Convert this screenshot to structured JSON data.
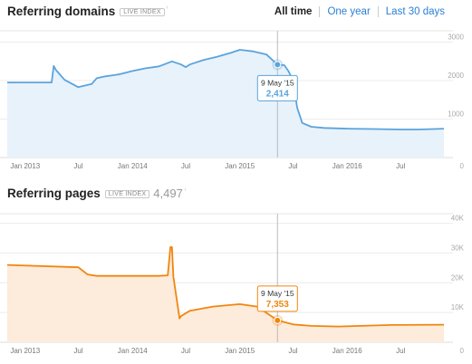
{
  "header": {
    "ranges": [
      {
        "label": "All time",
        "active": true
      },
      {
        "label": "One year",
        "active": false
      },
      {
        "label": "Last 30 days",
        "active": false
      }
    ]
  },
  "chart_data": [
    {
      "type": "area",
      "title": "Referring domains",
      "badge": "LIVE INDEX",
      "total": "",
      "info_icon": "info-icon",
      "color": "#5ba3dc",
      "fill": "#e8f2fb",
      "xlim": [
        "2012-11-01",
        "2016-11-25"
      ],
      "ylim": [
        0,
        3200
      ],
      "yticks": [
        1000,
        2000,
        3000
      ],
      "ytick_labels": [
        "1000",
        "2000",
        "3000"
      ],
      "xticks": [
        "2013-01-01",
        "2013-07-01",
        "2014-01-01",
        "2014-07-01",
        "2015-01-01",
        "2015-07-01",
        "2016-01-01",
        "2016-07-01"
      ],
      "xtick_labels": [
        "Jan 2013",
        "Jul",
        "Jan 2014",
        "Jul",
        "Jan 2015",
        "Jul",
        "Jan 2016",
        "Jul"
      ],
      "grid": true,
      "x": [
        "2012-11-01",
        "2013-04-01",
        "2013-04-08",
        "2013-04-15",
        "2013-05-15",
        "2013-06-30",
        "2013-08-15",
        "2013-09-01",
        "2013-10-01",
        "2013-11-15",
        "2014-01-01",
        "2014-02-15",
        "2014-04-01",
        "2014-05-15",
        "2014-06-15",
        "2014-07-01",
        "2014-07-15",
        "2014-09-01",
        "2014-10-15",
        "2014-12-01",
        "2015-01-01",
        "2015-02-15",
        "2015-04-01",
        "2015-05-09",
        "2015-06-01",
        "2015-06-15",
        "2015-07-01",
        "2015-07-15",
        "2015-08-01",
        "2015-09-01",
        "2015-10-15",
        "2016-01-01",
        "2016-04-01",
        "2016-07-01",
        "2016-09-01",
        "2016-11-25"
      ],
      "values": [
        1950,
        1950,
        2380,
        2280,
        2020,
        1830,
        1910,
        2060,
        2110,
        2160,
        2250,
        2320,
        2370,
        2500,
        2420,
        2350,
        2420,
        2540,
        2620,
        2720,
        2800,
        2760,
        2680,
        2414,
        2400,
        2250,
        2000,
        1300,
        900,
        800,
        770,
        750,
        740,
        730,
        730,
        750
      ],
      "tooltip": {
        "x": "2015-05-09",
        "date": "9 May '15",
        "value": "2,414"
      }
    },
    {
      "type": "area",
      "title": "Referring pages",
      "badge": "LIVE INDEX",
      "total": "4,497",
      "info_icon": "info-icon",
      "color": "#f0860f",
      "fill": "#fdebdc",
      "xlim": [
        "2012-11-01",
        "2016-11-25"
      ],
      "ylim": [
        0,
        42000
      ],
      "yticks": [
        10000,
        20000,
        30000,
        40000
      ],
      "ytick_labels": [
        "10K",
        "20K",
        "30K",
        "40K"
      ],
      "xticks": [
        "2013-01-01",
        "2013-07-01",
        "2014-01-01",
        "2014-07-01",
        "2015-01-01",
        "2015-07-01",
        "2016-01-01",
        "2016-07-01"
      ],
      "xtick_labels": [
        "Jan 2013",
        "Jul",
        "Jan 2014",
        "Jul",
        "Jan 2015",
        "Jul",
        "Jan 2016",
        "Jul"
      ],
      "grid": true,
      "x": [
        "2012-11-01",
        "2013-07-01",
        "2013-08-01",
        "2013-09-01",
        "2014-04-01",
        "2014-05-01",
        "2014-05-10",
        "2014-05-15",
        "2014-05-20",
        "2014-06-01",
        "2014-06-10",
        "2014-06-15",
        "2014-07-15",
        "2014-10-01",
        "2015-01-01",
        "2015-03-01",
        "2015-05-09",
        "2015-07-01",
        "2015-09-01",
        "2015-12-01",
        "2016-06-01",
        "2016-11-25"
      ],
      "values": [
        26000,
        25200,
        22800,
        22300,
        22300,
        22500,
        32000,
        32000,
        22000,
        14000,
        8000,
        8800,
        10600,
        12000,
        12800,
        12000,
        7353,
        6000,
        5500,
        5300,
        5800,
        5900
      ],
      "tooltip": {
        "x": "2015-05-09",
        "date": "9 May '15",
        "value": "7,353"
      }
    }
  ]
}
